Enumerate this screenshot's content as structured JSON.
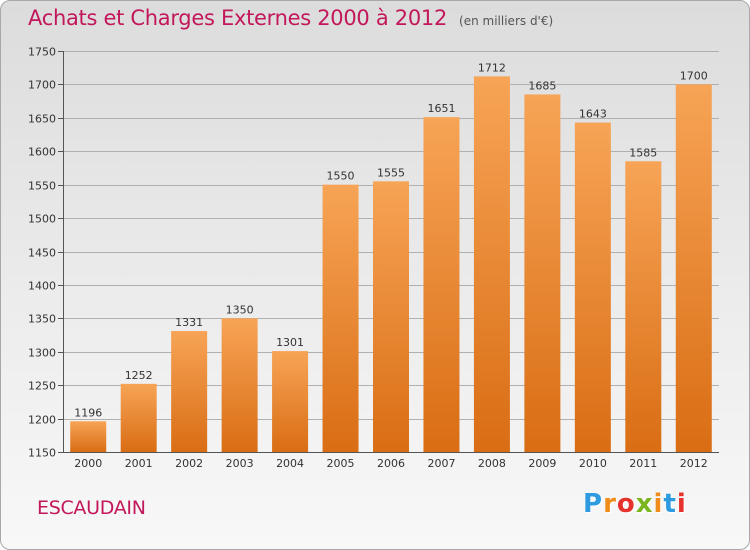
{
  "header": {
    "title": "Achats et Charges Externes 2000 à 2012",
    "unit": "(en milliers d'€)"
  },
  "footer": {
    "city": "ESCAUDAIN",
    "logo": "Proxiti",
    "logo_colors": [
      "#2e9be0",
      "#f08c1a",
      "#e5322d",
      "#7ab51d",
      "#f08c1a",
      "#2e9be0",
      "#e5322d"
    ]
  },
  "colors": {
    "bar_top": "#f7a456",
    "bar_bottom": "#d96d14",
    "title": "#c2185b",
    "grid": "#b0b0b0"
  },
  "chart_data": {
    "type": "bar",
    "title": "Achats et Charges Externes 2000 à 2012",
    "categories": [
      "2000",
      "2001",
      "2002",
      "2003",
      "2004",
      "2005",
      "2006",
      "2007",
      "2008",
      "2009",
      "2010",
      "2011",
      "2012"
    ],
    "values": [
      1196,
      1252,
      1331,
      1350,
      1301,
      1550,
      1555,
      1651,
      1712,
      1685,
      1643,
      1585,
      1700
    ],
    "ylim": [
      1150,
      1750
    ],
    "yticks": [
      1150,
      1200,
      1250,
      1300,
      1350,
      1400,
      1450,
      1500,
      1550,
      1600,
      1650,
      1700,
      1750
    ],
    "grid": true,
    "xlabel": "",
    "ylabel": ""
  }
}
